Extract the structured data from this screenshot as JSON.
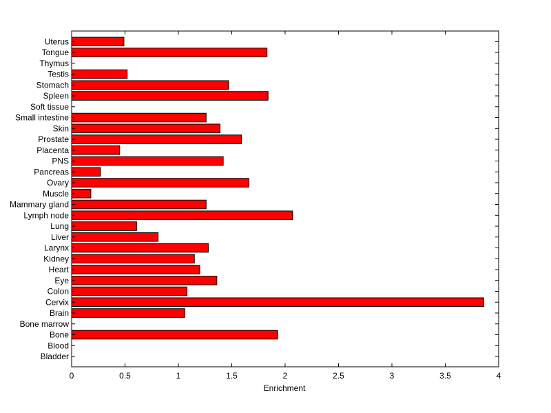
{
  "chart_data": {
    "type": "bar",
    "orientation": "horizontal",
    "categories": [
      "Bladder",
      "Blood",
      "Bone",
      "Bone marrow",
      "Brain",
      "Cervix",
      "Colon",
      "Eye",
      "Heart",
      "Kidney",
      "Larynx",
      "Liver",
      "Lung",
      "Lymph node",
      "Mammary gland",
      "Muscle",
      "Ovary",
      "Pancreas",
      "PNS",
      "Placenta",
      "Prostate",
      "Skin",
      "Small intestine",
      "Soft tissue",
      "Spleen",
      "Stomach",
      "Testis",
      "Thymus",
      "Tongue",
      "Uterus"
    ],
    "values": [
      0,
      0,
      1.93,
      0,
      1.06,
      3.86,
      1.08,
      1.36,
      1.2,
      1.15,
      1.28,
      0.81,
      0.61,
      2.07,
      1.26,
      0.18,
      1.66,
      0.27,
      1.42,
      0.45,
      1.59,
      1.39,
      1.26,
      0,
      1.84,
      1.47,
      0.52,
      0,
      1.83,
      0.49
    ],
    "xlabel": "Enrichment",
    "xlim": [
      0,
      4
    ],
    "xticks": [
      "0",
      "0.5",
      "1",
      "1.5",
      "2",
      "2.5",
      "3",
      "3.5",
      "4"
    ],
    "bar_color": "#ff0000",
    "grid": false
  }
}
